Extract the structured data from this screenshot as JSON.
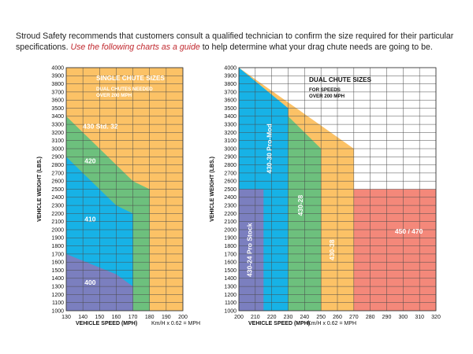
{
  "intro": {
    "text_before": "Stroud Safety recommends that customers consult a qualified technician to confirm the size required for their particular specifications. ",
    "highlight": "Use the following charts as a guide",
    "text_after": " to help determine what your drag chute needs are going to be."
  },
  "colors": {
    "orange": "#fcc266",
    "green": "#6dc07d",
    "blue": "#17b2e6",
    "purple": "#7b7fbf",
    "red": "#f4887a",
    "grid": "#4a4a4a",
    "title_text": "#ffffff",
    "accent": "#c0272d"
  },
  "chart_data": [
    {
      "type": "area",
      "title": "SINGLE CHUTE SIZES",
      "subtitle": "DUAL CHUTES NEEDED OVER 200 MPH",
      "xlabel": "VEHICLE SPEED (MPH)",
      "xnote": "Km/H x 0.62 = MPH",
      "ylabel": "VEHICLE WEIGHT (LBS.)",
      "xlim": [
        130,
        200
      ],
      "ylim": [
        1000,
        4000
      ],
      "x_ticks": [
        130,
        140,
        150,
        160,
        170,
        180,
        190,
        200
      ],
      "y_ticks": [
        1000,
        1100,
        1200,
        1300,
        1400,
        1500,
        1600,
        1700,
        1800,
        1900,
        2000,
        2100,
        2200,
        2300,
        2400,
        2500,
        2600,
        2700,
        2800,
        2900,
        3000,
        3100,
        3200,
        3300,
        3400,
        3500,
        3600,
        3700,
        3800,
        3900,
        4000
      ],
      "grid": true,
      "regions": [
        {
          "name": "430 Std. 32",
          "color": "orange",
          "points": [
            [
              130,
              1000
            ],
            [
              130,
              4000
            ],
            [
              200,
              4000
            ],
            [
              200,
              1000
            ]
          ],
          "label_at": [
            140,
            3250
          ],
          "label_rotate": false
        },
        {
          "name": "420",
          "color": "green",
          "points": [
            [
              130,
              1000
            ],
            [
              130,
              3400
            ],
            [
              170,
              2600
            ],
            [
              180,
              2500
            ],
            [
              180,
              1000
            ]
          ],
          "label_at": [
            141,
            2820
          ],
          "label_rotate": false
        },
        {
          "name": "410",
          "color": "blue",
          "points": [
            [
              130,
              1000
            ],
            [
              130,
              2900
            ],
            [
              160,
              2300
            ],
            [
              170,
              2200
            ],
            [
              170,
              1000
            ]
          ],
          "label_at": [
            141,
            2100
          ],
          "label_rotate": false
        },
        {
          "name": "400",
          "color": "purple",
          "points": [
            [
              130,
              1000
            ],
            [
              130,
              1700
            ],
            [
              160,
              1450
            ],
            [
              170,
              1300
            ],
            [
              170,
              1000
            ]
          ],
          "label_at": [
            141,
            1320
          ],
          "label_rotate": false
        }
      ]
    },
    {
      "type": "area",
      "title": "DUAL CHUTE SIZES",
      "subtitle": "FOR SPEEDS OVER 200 MPH",
      "xlabel": "VEHICLE SPEED (MPH)",
      "xnote": "Km/H x 0.62 = MPH",
      "ylabel": "VEHICLE WEIGHT (LBS.)",
      "xlim": [
        200,
        320
      ],
      "ylim": [
        1000,
        4000
      ],
      "x_ticks": [
        200,
        210,
        220,
        230,
        240,
        250,
        260,
        270,
        280,
        290,
        300,
        310,
        320
      ],
      "y_ticks": [
        1000,
        1100,
        1200,
        1300,
        1400,
        1500,
        1600,
        1700,
        1800,
        1900,
        2000,
        2100,
        2200,
        2300,
        2400,
        2500,
        2600,
        2700,
        2800,
        2900,
        3000,
        3100,
        3200,
        3300,
        3400,
        3500,
        3600,
        3700,
        3800,
        3900,
        4000
      ],
      "grid": true,
      "regions": [
        {
          "name": "430-38",
          "color": "orange",
          "points": [
            [
              200,
              1000
            ],
            [
              200,
              4000
            ],
            [
              270,
              3000
            ],
            [
              270,
              1000
            ]
          ],
          "label_at": [
            258,
            1750
          ],
          "label_rotate": true
        },
        {
          "name": "450 / 470",
          "color": "red",
          "points": [
            [
              270,
              1000
            ],
            [
              270,
              2500
            ],
            [
              320,
              2500
            ],
            [
              320,
              1000
            ]
          ],
          "label_at": [
            295,
            1950
          ],
          "label_rotate": false
        },
        {
          "name": "430-28",
          "color": "green",
          "points": [
            [
              200,
              1000
            ],
            [
              200,
              4000
            ],
            [
              250,
              3000
            ],
            [
              250,
              1000
            ]
          ],
          "label_at": [
            239,
            2300
          ],
          "label_rotate": true
        },
        {
          "name": "430-30 Pro-Mod",
          "color": "blue",
          "points": [
            [
              200,
              1000
            ],
            [
              200,
              4000
            ],
            [
              230,
              3500
            ],
            [
              230,
              1000
            ]
          ],
          "label_at": [
            220,
            3000
          ],
          "label_rotate": true
        },
        {
          "name": "430-24 Pro Stock",
          "color": "purple",
          "points": [
            [
              200,
              1000
            ],
            [
              200,
              2500
            ],
            [
              215,
              2500
            ],
            [
              215,
              1000
            ]
          ],
          "label_at": [
            208,
            1750
          ],
          "label_rotate": true
        }
      ]
    }
  ]
}
